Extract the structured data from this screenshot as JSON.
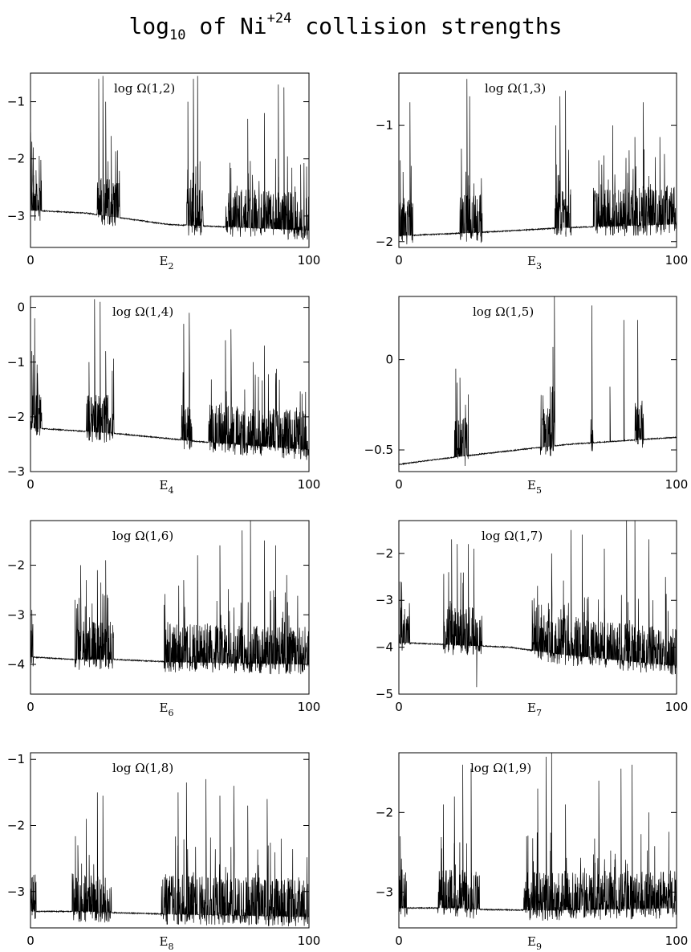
{
  "title": {
    "prefix": "log",
    "sub": "10",
    "mid": "of Ni",
    "sup": "+24",
    "suffix": "collision strengths"
  },
  "chart_data": [
    {
      "type": "line",
      "panel_label": "log Ω(1,2)",
      "xlabel": "E",
      "xlabel_sub": "2",
      "xlim": [
        0,
        100
      ],
      "ylim": [
        -3.55,
        -0.5
      ],
      "xticks": [
        0,
        100
      ],
      "yticks": [
        -1,
        -2,
        -3
      ],
      "baseline": [
        [
          0,
          -2.9
        ],
        [
          20,
          -2.95
        ],
        [
          50,
          -3.15
        ],
        [
          100,
          -3.25
        ]
      ],
      "resonance_bands": [
        [
          0,
          4
        ],
        [
          24,
          32
        ],
        [
          56,
          62
        ],
        [
          70,
          100
        ]
      ],
      "peaks": [
        [
          0.5,
          -1.7
        ],
        [
          1,
          -1.8
        ],
        [
          2,
          -2.2
        ],
        [
          24.5,
          -0.6
        ],
        [
          26,
          -0.55
        ],
        [
          27,
          -1.0
        ],
        [
          29,
          -1.6
        ],
        [
          56.5,
          -1.0
        ],
        [
          58.5,
          -0.6
        ],
        [
          60,
          -0.55
        ],
        [
          78,
          -1.3
        ],
        [
          84,
          -1.2
        ],
        [
          89,
          -0.7
        ],
        [
          91,
          -0.75
        ],
        [
          97,
          -2.1
        ]
      ]
    },
    {
      "type": "line",
      "panel_label": "log Ω(1,3)",
      "xlabel": "E",
      "xlabel_sub": "3",
      "xlim": [
        0,
        100
      ],
      "ylim": [
        -2.05,
        -0.55
      ],
      "xticks": [
        0,
        100
      ],
      "yticks": [
        -1,
        -2
      ],
      "baseline": [
        [
          0,
          -1.95
        ],
        [
          30,
          -1.92
        ],
        [
          60,
          -1.88
        ],
        [
          100,
          -1.85
        ]
      ],
      "resonance_bands": [
        [
          0,
          5
        ],
        [
          22,
          30
        ],
        [
          56,
          62
        ],
        [
          70,
          100
        ]
      ],
      "peaks": [
        [
          0.5,
          -1.3
        ],
        [
          1.5,
          -1.4
        ],
        [
          4,
          -0.8
        ],
        [
          22.5,
          -1.2
        ],
        [
          24.5,
          -0.6
        ],
        [
          25.5,
          -0.75
        ],
        [
          27,
          -1.5
        ],
        [
          56.5,
          -1.0
        ],
        [
          58,
          -0.75
        ],
        [
          60,
          -0.7
        ],
        [
          72,
          -1.3
        ],
        [
          77,
          -1.0
        ],
        [
          85,
          -1.1
        ],
        [
          88,
          -0.8
        ],
        [
          94,
          -1.1
        ]
      ]
    },
    {
      "type": "line",
      "panel_label": "log Ω(1,4)",
      "xlabel": "E",
      "xlabel_sub": "4",
      "xlim": [
        0,
        100
      ],
      "ylim": [
        -3.0,
        0.2
      ],
      "xticks": [
        0,
        100
      ],
      "yticks": [
        0,
        -1,
        -2,
        -3
      ],
      "baseline": [
        [
          0,
          -2.2
        ],
        [
          30,
          -2.3
        ],
        [
          60,
          -2.45
        ],
        [
          100,
          -2.6
        ]
      ],
      "resonance_bands": [
        [
          0,
          4
        ],
        [
          20,
          30
        ],
        [
          54,
          58
        ],
        [
          64,
          100
        ]
      ],
      "peaks": [
        [
          0.5,
          -0.8
        ],
        [
          1.5,
          -0.2
        ],
        [
          2.5,
          -1.2
        ],
        [
          21,
          -1.0
        ],
        [
          23,
          0.15
        ],
        [
          25,
          0.1
        ],
        [
          27,
          -0.8
        ],
        [
          55,
          -0.3
        ],
        [
          57,
          -0.1
        ],
        [
          70,
          -0.6
        ],
        [
          72,
          -0.4
        ],
        [
          80,
          -1.0
        ],
        [
          84,
          -0.7
        ],
        [
          88,
          -1.2
        ],
        [
          96,
          -2.0
        ]
      ]
    },
    {
      "type": "line",
      "panel_label": "log Ω(1,5)",
      "xlabel": "E",
      "xlabel_sub": "5",
      "xlim": [
        0,
        100
      ],
      "ylim": [
        -0.62,
        0.35
      ],
      "xticks": [
        0,
        100
      ],
      "yticks": [
        0,
        -0.5
      ],
      "baseline": [
        [
          0,
          -0.58
        ],
        [
          20,
          -0.54
        ],
        [
          60,
          -0.47
        ],
        [
          100,
          -0.43
        ]
      ],
      "resonance_bands": [
        [
          20,
          25
        ],
        [
          51,
          56
        ],
        [
          69,
          70
        ],
        [
          85,
          88
        ]
      ],
      "peaks": [
        [
          20.5,
          -0.05
        ],
        [
          22,
          -0.1
        ],
        [
          24,
          -0.25
        ],
        [
          52,
          -0.35
        ],
        [
          54.5,
          -0.15
        ],
        [
          55.5,
          0.07
        ],
        [
          56,
          0.35
        ],
        [
          69.5,
          0.3
        ],
        [
          76,
          -0.15
        ],
        [
          81,
          0.22
        ],
        [
          86,
          0.22
        ],
        [
          88,
          -0.3
        ]
      ]
    },
    {
      "type": "line",
      "panel_label": "log Ω(1,6)",
      "xlabel": "E",
      "xlabel_sub": "6",
      "xlim": [
        0,
        100
      ],
      "ylim": [
        -4.6,
        -1.1
      ],
      "xticks": [
        0,
        100
      ],
      "yticks": [
        -2,
        -3,
        -4
      ],
      "baseline": [
        [
          0,
          -3.85
        ],
        [
          15,
          -3.9
        ],
        [
          30,
          -3.9
        ],
        [
          50,
          -3.95
        ],
        [
          100,
          -4.0
        ]
      ],
      "resonance_bands": [
        [
          0,
          1
        ],
        [
          16,
          30
        ],
        [
          48,
          100
        ]
      ],
      "peaks": [
        [
          0.5,
          -2.9
        ],
        [
          16,
          -2.7
        ],
        [
          18,
          -2.0
        ],
        [
          20,
          -2.3
        ],
        [
          24,
          -2.1
        ],
        [
          27,
          -1.9
        ],
        [
          48,
          -2.8
        ],
        [
          55,
          -2.3
        ],
        [
          60,
          -1.8
        ],
        [
          68,
          -1.6
        ],
        [
          76,
          -1.3
        ],
        [
          79,
          -1.1
        ],
        [
          84,
          -1.5
        ],
        [
          88,
          -1.6
        ],
        [
          92,
          -2.2
        ]
      ]
    },
    {
      "type": "line",
      "panel_label": "log Ω(1,7)",
      "xlabel": "E",
      "xlabel_sub": "7",
      "xlim": [
        0,
        100
      ],
      "ylim": [
        -5.0,
        -1.3
      ],
      "xticks": [
        0,
        100
      ],
      "yticks": [
        -2,
        -3,
        -4,
        -5
      ],
      "baseline": [
        [
          0,
          -3.9
        ],
        [
          20,
          -3.95
        ],
        [
          40,
          -4.0
        ],
        [
          58,
          -4.15
        ],
        [
          100,
          -4.4
        ]
      ],
      "resonance_bands": [
        [
          0,
          4
        ],
        [
          16,
          30
        ],
        [
          48,
          100
        ]
      ],
      "peaks": [
        [
          0.5,
          -2.6
        ],
        [
          2,
          -3.3
        ],
        [
          19,
          -1.7
        ],
        [
          21,
          -1.8
        ],
        [
          25,
          -1.8
        ],
        [
          27,
          -1.9
        ],
        [
          28,
          -4.85
        ],
        [
          48,
          -3.0
        ],
        [
          55,
          -2.0
        ],
        [
          62,
          -1.5
        ],
        [
          66,
          -1.6
        ],
        [
          74,
          -1.9
        ],
        [
          82,
          -1.3
        ],
        [
          85,
          -1.2
        ],
        [
          90,
          -1.7
        ],
        [
          96,
          -2.5
        ]
      ]
    },
    {
      "type": "line",
      "panel_label": "log Ω(1,8)",
      "xlabel": "E",
      "xlabel_sub": "8",
      "xlim": [
        0,
        100
      ],
      "ylim": [
        -3.55,
        -0.9
      ],
      "xticks": [
        0,
        100
      ],
      "yticks": [
        -1,
        -2,
        -3
      ],
      "baseline": [
        [
          0,
          -3.3
        ],
        [
          20,
          -3.3
        ],
        [
          30,
          -3.32
        ],
        [
          58,
          -3.35
        ],
        [
          100,
          -3.38
        ]
      ],
      "resonance_bands": [
        [
          0,
          2
        ],
        [
          15,
          29
        ],
        [
          47,
          100
        ]
      ],
      "peaks": [
        [
          0.5,
          -2.8
        ],
        [
          17,
          -2.3
        ],
        [
          20,
          -1.9
        ],
        [
          24,
          -1.5
        ],
        [
          26,
          -1.55
        ],
        [
          49,
          -2.8
        ],
        [
          53,
          -1.5
        ],
        [
          56,
          -1.35
        ],
        [
          63,
          -1.3
        ],
        [
          68,
          -1.55
        ],
        [
          73,
          -1.4
        ],
        [
          78,
          -1.7
        ],
        [
          85,
          -1.6
        ],
        [
          90,
          -2.2
        ]
      ]
    },
    {
      "type": "line",
      "panel_label": "log Ω(1,9)",
      "xlabel": "E",
      "xlabel_sub": "9",
      "xlim": [
        0,
        100
      ],
      "ylim": [
        -3.45,
        -1.25
      ],
      "xticks": [
        0,
        100
      ],
      "yticks": [
        -2,
        -3
      ],
      "baseline": [
        [
          0,
          -3.2
        ],
        [
          20,
          -3.2
        ],
        [
          30,
          -3.22
        ],
        [
          55,
          -3.23
        ],
        [
          100,
          -3.2
        ]
      ],
      "resonance_bands": [
        [
          0,
          3
        ],
        [
          14,
          29
        ],
        [
          45,
          100
        ]
      ],
      "peaks": [
        [
          0.5,
          -2.3
        ],
        [
          2,
          -2.9
        ],
        [
          16,
          -1.9
        ],
        [
          20,
          -1.8
        ],
        [
          23,
          -1.4
        ],
        [
          26,
          -1.45
        ],
        [
          46,
          -2.3
        ],
        [
          50,
          -1.7
        ],
        [
          53,
          -1.3
        ],
        [
          55,
          -1.25
        ],
        [
          60,
          -1.9
        ],
        [
          72,
          -1.6
        ],
        [
          80,
          -1.45
        ],
        [
          84,
          -1.4
        ],
        [
          90,
          -2.0
        ]
      ]
    }
  ]
}
